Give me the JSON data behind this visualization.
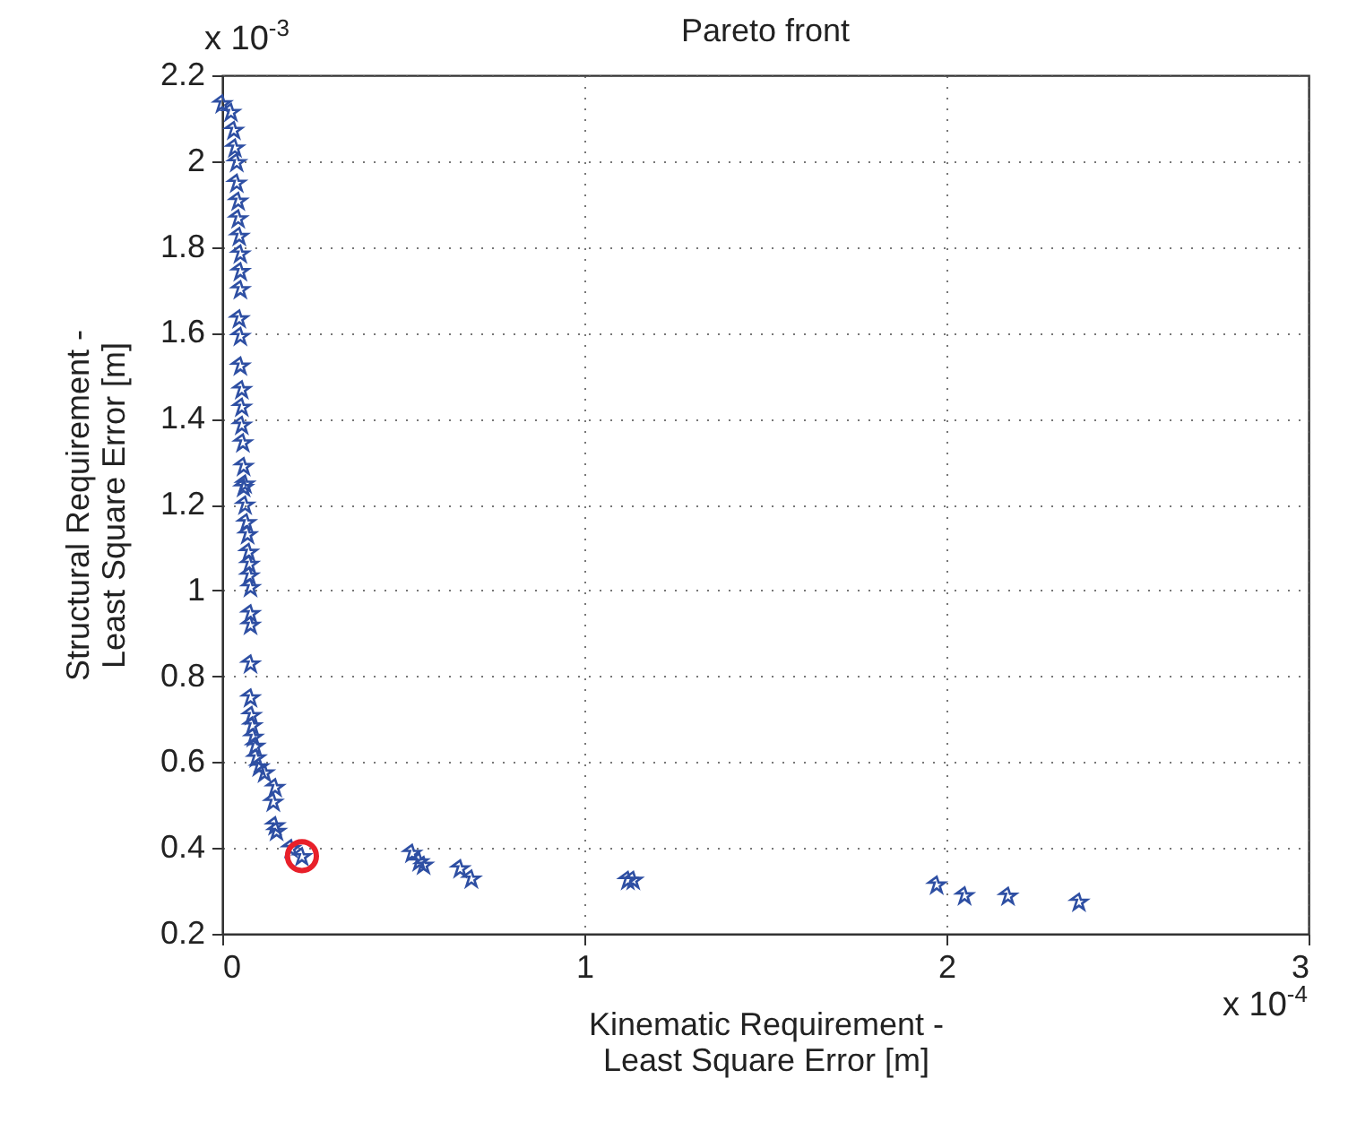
{
  "chart_data": {
    "type": "scatter",
    "title": "Pareto front",
    "xlabel": "Kinematic Requirement -\nLeast Square Error [m]",
    "ylabel": "Structural Requirement -\nLeast Square Error [m]",
    "annotations": [
      "x 10$^{-3}$",
      "x 10$^{-4}$"
    ],
    "xlim": [
      0,
      3
    ],
    "xticks": [
      0,
      1,
      2,
      3
    ],
    "ylim": [
      0.2,
      2.2
    ],
    "yticks": [
      0.2,
      0.4,
      0.6,
      0.8,
      1,
      1.2,
      1.4,
      1.6,
      1.8,
      2,
      2.2
    ],
    "grid": true,
    "marker": "star",
    "series": [
      {
        "color": "#2e4fa3",
        "x": [
          0.0,
          0.024,
          0.032,
          0.035,
          0.04,
          0.04,
          0.044,
          0.044,
          0.047,
          0.05,
          0.05,
          0.05,
          0.047,
          0.05,
          0.05,
          0.054,
          0.054,
          0.054,
          0.057,
          0.059,
          0.063,
          0.059,
          0.063,
          0.067,
          0.07,
          0.073,
          0.075,
          0.075,
          0.078,
          0.078,
          0.078,
          0.078,
          0.078,
          0.081,
          0.083,
          0.086,
          0.091,
          0.094,
          0.102,
          0.117,
          0.146,
          0.141,
          0.146,
          0.15,
          0.19,
          0.22,
          0.524,
          0.544,
          0.556,
          0.657,
          0.688,
          1.12,
          1.135,
          1.973,
          2.05,
          2.17,
          2.366
        ],
        "values": [
          2.135,
          2.115,
          2.073,
          2.032,
          1.998,
          1.95,
          1.908,
          1.867,
          1.826,
          1.785,
          1.744,
          1.702,
          1.634,
          1.593,
          1.524,
          1.469,
          1.428,
          1.386,
          1.345,
          1.29,
          1.249,
          1.241,
          1.2,
          1.159,
          1.131,
          1.09,
          1.062,
          1.035,
          1.008,
          0.947,
          0.92,
          0.83,
          0.751,
          0.71,
          0.686,
          0.659,
          0.638,
          0.611,
          0.59,
          0.576,
          0.542,
          0.508,
          0.453,
          0.44,
          0.4,
          0.381,
          0.389,
          0.369,
          0.361,
          0.353,
          0.329,
          0.326,
          0.326,
          0.315,
          0.29,
          0.289,
          0.275
        ]
      },
      {
        "color": "#e8202a",
        "marker": "circle",
        "x": [
          0.22
        ],
        "values": [
          0.381
        ]
      }
    ]
  }
}
